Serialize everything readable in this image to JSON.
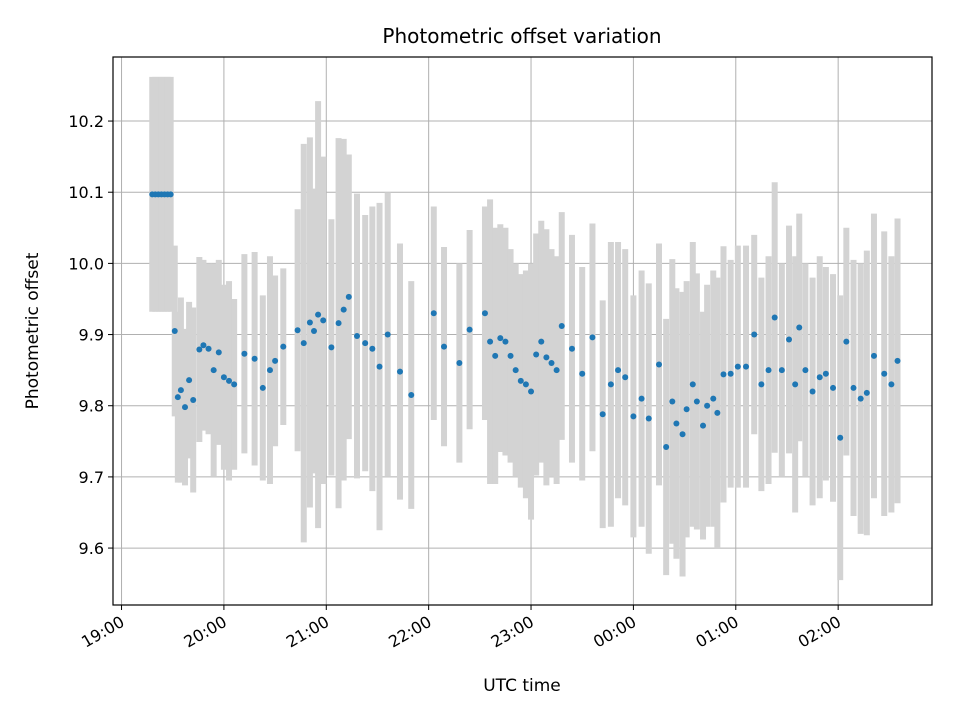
{
  "chart_data": {
    "type": "scatter",
    "title": "Photometric offset variation",
    "xlabel": "UTC time",
    "ylabel": "Photometric offset",
    "xlim": [
      "18:55",
      "26:55"
    ],
    "ylim": [
      9.52,
      10.29
    ],
    "x_tick_labels": [
      "19:00",
      "20:00",
      "21:00",
      "22:00",
      "23:00",
      "00:00",
      "01:00",
      "02:00"
    ],
    "y_tick_labels": [
      "9.6",
      "9.7",
      "9.8",
      "9.9",
      "10.0",
      "10.1",
      "10.2"
    ],
    "y_ticks": [
      9.6,
      9.7,
      9.8,
      9.9,
      10.0,
      10.1,
      10.2
    ],
    "grid": true,
    "point_color": "#1f77b4",
    "errorbar_color": "#d3d3d3",
    "x_unit": "hours_utc_continuous",
    "x": [
      19.3,
      19.33,
      19.36,
      19.39,
      19.42,
      19.45,
      19.48,
      19.52,
      19.55,
      19.58,
      19.62,
      19.66,
      19.7,
      19.76,
      19.8,
      19.85,
      19.9,
      19.95,
      20.0,
      20.05,
      20.1,
      20.2,
      20.3,
      20.38,
      20.45,
      20.5,
      20.58,
      20.72,
      20.78,
      20.84,
      20.88,
      20.92,
      20.97,
      21.05,
      21.12,
      21.17,
      21.22,
      21.3,
      21.38,
      21.45,
      21.52,
      21.6,
      21.72,
      21.83,
      22.05,
      22.15,
      22.3,
      22.4,
      22.55,
      22.6,
      22.65,
      22.7,
      22.75,
      22.8,
      22.85,
      22.9,
      22.95,
      23.0,
      23.05,
      23.1,
      23.15,
      23.2,
      23.25,
      23.3,
      23.4,
      23.5,
      23.6,
      23.7,
      23.78,
      23.85,
      23.92,
      24.0,
      24.08,
      24.15,
      24.25,
      24.32,
      24.38,
      24.42,
      24.48,
      24.52,
      24.58,
      24.62,
      24.68,
      24.72,
      24.78,
      24.82,
      24.88,
      24.95,
      25.02,
      25.1,
      25.18,
      25.25,
      25.32,
      25.38,
      25.45,
      25.52,
      25.58,
      25.62,
      25.68,
      25.75,
      25.82,
      25.88,
      25.95,
      26.02,
      26.08,
      26.15,
      26.22,
      26.28,
      26.35,
      26.45,
      26.52,
      26.58
    ],
    "values": [
      10.097,
      10.097,
      10.097,
      10.097,
      10.097,
      10.097,
      10.097,
      9.905,
      9.812,
      9.822,
      9.798,
      9.836,
      9.808,
      9.879,
      9.885,
      9.88,
      9.85,
      9.875,
      9.84,
      9.835,
      9.83,
      9.873,
      9.866,
      9.825,
      9.85,
      9.863,
      9.883,
      9.906,
      9.888,
      9.917,
      9.905,
      9.928,
      9.92,
      9.882,
      9.916,
      9.935,
      9.953,
      9.898,
      9.888,
      9.88,
      9.855,
      9.9,
      9.848,
      9.815,
      9.93,
      9.883,
      9.86,
      9.907,
      9.93,
      9.89,
      9.87,
      9.895,
      9.89,
      9.87,
      9.85,
      9.835,
      9.83,
      9.82,
      9.872,
      9.89,
      9.868,
      9.86,
      9.85,
      9.912,
      9.88,
      9.845,
      9.896,
      9.788,
      9.83,
      9.85,
      9.84,
      9.785,
      9.81,
      9.782,
      9.858,
      9.742,
      9.806,
      9.775,
      9.76,
      9.795,
      9.83,
      9.806,
      9.772,
      9.8,
      9.81,
      9.79,
      9.844,
      9.845,
      9.855,
      9.855,
      9.9,
      9.83,
      9.85,
      9.924,
      9.85,
      9.893,
      9.83,
      9.91,
      9.85,
      9.82,
      9.84,
      9.845,
      9.825,
      9.755,
      9.89,
      9.825,
      9.81,
      9.818,
      9.87,
      9.845,
      9.83,
      9.863
    ],
    "errors": [
      0.165,
      0.165,
      0.165,
      0.165,
      0.165,
      0.165,
      0.165,
      0.12,
      0.12,
      0.13,
      0.11,
      0.11,
      0.13,
      0.13,
      0.12,
      0.12,
      0.15,
      0.13,
      0.13,
      0.14,
      0.12,
      0.14,
      0.15,
      0.13,
      0.16,
      0.12,
      0.11,
      0.17,
      0.28,
      0.26,
      0.2,
      0.3,
      0.23,
      0.18,
      0.26,
      0.24,
      0.2,
      0.2,
      0.18,
      0.2,
      0.23,
      0.2,
      0.18,
      0.16,
      0.15,
      0.14,
      0.14,
      0.14,
      0.15,
      0.2,
      0.18,
      0.16,
      0.16,
      0.15,
      0.15,
      0.15,
      0.16,
      0.18,
      0.17,
      0.17,
      0.18,
      0.16,
      0.16,
      0.16,
      0.16,
      0.15,
      0.16,
      0.16,
      0.2,
      0.18,
      0.18,
      0.17,
      0.18,
      0.19,
      0.17,
      0.18,
      0.2,
      0.19,
      0.2,
      0.18,
      0.2,
      0.18,
      0.16,
      0.17,
      0.18,
      0.19,
      0.18,
      0.16,
      0.17,
      0.17,
      0.14,
      0.15,
      0.16,
      0.19,
      0.15,
      0.16,
      0.18,
      0.16,
      0.15,
      0.16,
      0.17,
      0.15,
      0.16,
      0.2,
      0.16,
      0.18,
      0.19,
      0.2,
      0.2,
      0.2,
      0.18,
      0.2
    ]
  }
}
